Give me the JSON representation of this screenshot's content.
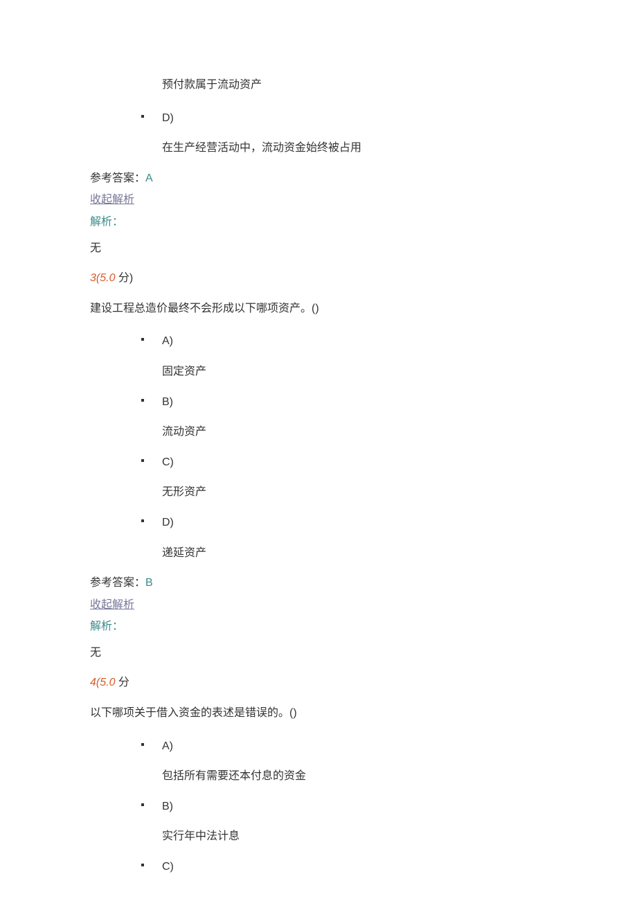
{
  "colors": {
    "text": "#333333",
    "answer_value": "#3a8a8a",
    "toggle_link": "#777799",
    "explain_label": "#3a8a8a",
    "q_number": "#d85a2a",
    "background": "#ffffff"
  },
  "typography": {
    "font_family": "Microsoft YaHei, SimSun, Arial, sans-serif",
    "base_size": 16,
    "line_height": 1.6
  },
  "q2_tail": {
    "option_c_text": "预付款属于流动资产",
    "option_d_label": "D)",
    "option_d_text": "在生产经营活动中，流动资金始终被占用",
    "answer_label": "参考答案：",
    "answer_value": "A",
    "toggle_text": "收起解析",
    "explain_label": "解析：",
    "explain_text": "无"
  },
  "q3": {
    "number": "3(5.0",
    "score_suffix": "分)",
    "stem": "建设工程总造价最终不会形成以下哪项资产。()",
    "options": [
      {
        "label": "A)",
        "text": "固定资产"
      },
      {
        "label": "B)",
        "text": "流动资产"
      },
      {
        "label": "C)",
        "text": "无形资产"
      },
      {
        "label": "D)",
        "text": "递延资产"
      }
    ],
    "answer_label": "参考答案：",
    "answer_value": "B",
    "toggle_text": "收起解析",
    "explain_label": "解析：",
    "explain_text": "无"
  },
  "q4": {
    "number": "4(5.0",
    "score_suffix": "分",
    "stem": "以下哪项关于借入资金的表述是错误的。()",
    "options": [
      {
        "label": "A)",
        "text": "包括所有需要还本付息的资金"
      },
      {
        "label": "B)",
        "text": "实行年中法计息"
      },
      {
        "label": "C)",
        "text": ""
      }
    ]
  }
}
